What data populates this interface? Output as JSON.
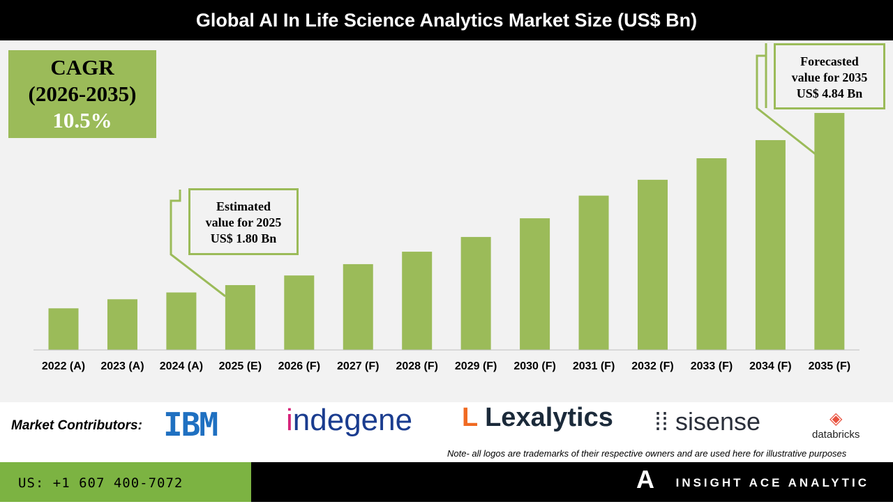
{
  "title": "Global AI In Life Science Analytics Market Size (US$ Bn)",
  "cagr": {
    "label": "CAGR",
    "period": "(2026-2035)",
    "value": "10.5%"
  },
  "callouts": {
    "estimated": [
      "Estimated",
      "value for 2025",
      "US$ 1.80 Bn"
    ],
    "forecasted": [
      "Forecasted",
      "value for 2035",
      "US$ 4.84 Bn"
    ]
  },
  "chart_data": {
    "type": "bar",
    "title": "Global AI In Life Science Analytics Market Size (US$ Bn)",
    "categories": [
      "2022 (A)",
      "2023 (A)",
      "2024 (A)",
      "2025 (E)",
      "2026 (F)",
      "2027 (F)",
      "2028 (F)",
      "2029 (F)",
      "2030 (F)",
      "2031 (F)",
      "2032 (F)",
      "2033 (F)",
      "2034 (F)",
      "2035 (F)"
    ],
    "values": [
      1.39,
      1.55,
      1.67,
      1.8,
      1.97,
      2.17,
      2.39,
      2.65,
      2.98,
      3.38,
      3.66,
      4.04,
      4.36,
      4.84
    ],
    "bar_color": "#9bbb59",
    "grid": false
  },
  "footer": {
    "contributors_label": "Market Contributors:",
    "logos": [
      "IBM",
      "indegene",
      "Lexalytics",
      "sisense",
      "databricks"
    ],
    "note": "Note- all logos are trademarks of their respective owners and are used here for illustrative purposes",
    "phone": "US: +1 607 400-7072",
    "brand": "INSIGHT ACE ANALYTIC"
  },
  "colors": {
    "accent": "#9bbb59",
    "phone_bg": "#7cb342"
  }
}
